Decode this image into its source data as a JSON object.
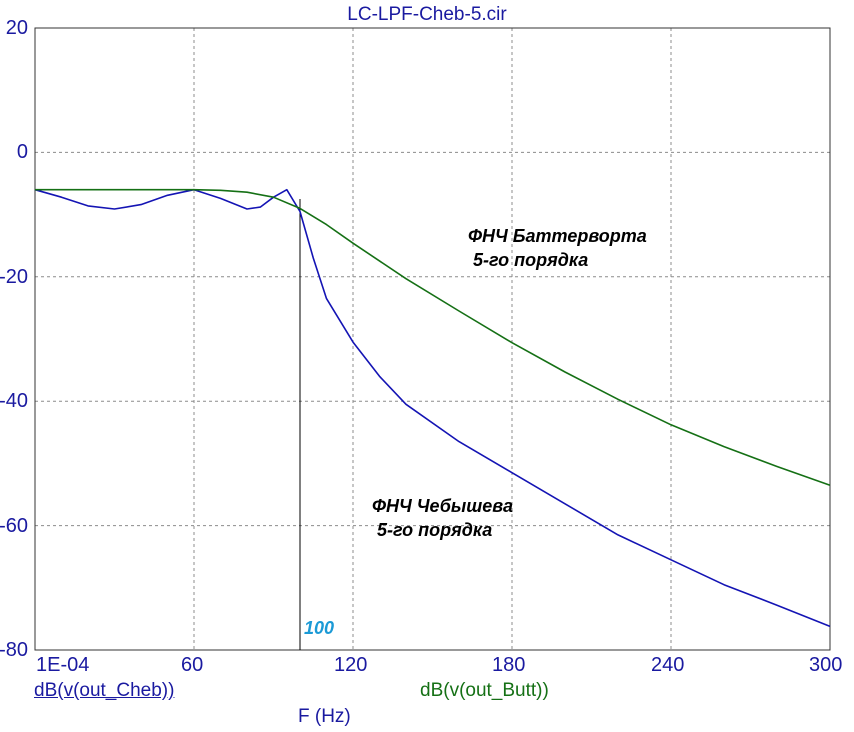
{
  "title": "LC-LPF-Cheb-5.cir",
  "chart_data": {
    "type": "line",
    "xlim": [
      0.0001,
      300
    ],
    "ylim": [
      -80,
      20
    ],
    "x_ticks": [
      "1E-04",
      "60",
      "120",
      "180",
      "240",
      "300"
    ],
    "y_ticks": [
      "20",
      "0",
      "-20",
      "-40",
      "-60",
      "-80"
    ],
    "xlabel": "F (Hz)",
    "grid": true,
    "cursor": {
      "x": 100,
      "label": "100"
    },
    "series": [
      {
        "name": "dB(v(out_Cheb))",
        "color": "#1414b4",
        "x": [
          0.0001,
          10,
          20,
          30,
          40,
          50,
          60,
          70,
          80,
          85,
          90,
          95,
          100,
          105,
          110,
          120,
          130,
          140,
          160,
          180,
          200,
          220,
          240,
          260,
          280,
          300
        ],
        "y": [
          -6.0,
          -7.2,
          -8.6,
          -9.1,
          -8.4,
          -6.9,
          -6.0,
          -7.4,
          -9.1,
          -8.8,
          -7.2,
          -6.0,
          -9.5,
          -17.0,
          -23.5,
          -30.5,
          -36.0,
          -40.5,
          -46.5,
          -51.5,
          -56.5,
          -61.5,
          -65.5,
          -69.5,
          -72.8,
          -76.2
        ]
      },
      {
        "name": "dB(v(out_Butt))",
        "color": "#157015",
        "x": [
          0.0001,
          20,
          40,
          60,
          70,
          80,
          90,
          100,
          110,
          120,
          140,
          160,
          180,
          200,
          220,
          240,
          260,
          280,
          300
        ],
        "y": [
          -6.0,
          -6.0,
          -6.0,
          -6.0,
          -6.1,
          -6.4,
          -7.2,
          -9.0,
          -11.6,
          -14.6,
          -20.3,
          -25.5,
          -30.6,
          -35.3,
          -39.7,
          -43.8,
          -47.3,
          -50.5,
          -53.5
        ]
      }
    ],
    "annotations": [
      {
        "text": "ФНЧ Баттерворта\n 5-го порядка"
      },
      {
        "text": "ФНЧ Чебышева\n 5-го порядка"
      }
    ]
  }
}
